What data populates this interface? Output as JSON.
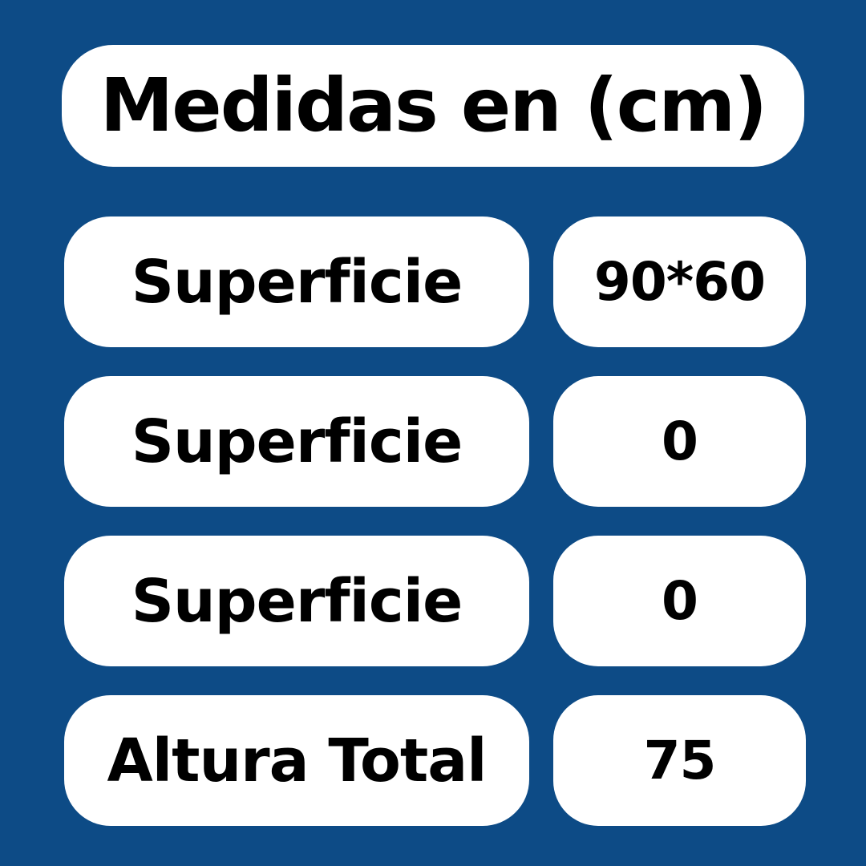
{
  "title": "Medidas en (cm)",
  "rows": [
    {
      "label": "Superficie",
      "value": "90*60"
    },
    {
      "label": "Superficie",
      "value": "0"
    },
    {
      "label": "Superficie",
      "value": "0"
    },
    {
      "label": "Altura Total",
      "value": "75"
    }
  ],
  "colors": {
    "background": "#0d4b86",
    "card": "#ffffff",
    "text": "#000000"
  },
  "chart_data": {
    "type": "table",
    "title": "Medidas en (cm)",
    "unit": "cm",
    "rows": [
      {
        "label": "Superficie",
        "value": "90*60"
      },
      {
        "label": "Superficie",
        "value": "0"
      },
      {
        "label": "Superficie",
        "value": "0"
      },
      {
        "label": "Altura Total",
        "value": "75"
      }
    ]
  }
}
